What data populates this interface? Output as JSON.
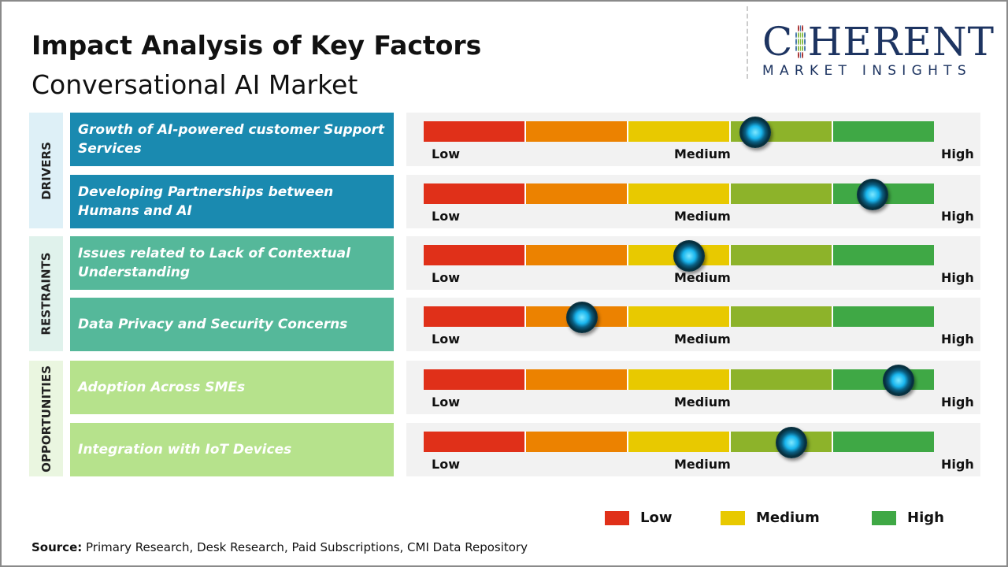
{
  "title": "Impact Analysis of Key Factors",
  "subtitle": "Conversational AI Market",
  "logo": {
    "main": "COHERENT",
    "tagline": "MARKET INSIGHTS"
  },
  "scale_labels": {
    "low": "Low",
    "medium": "Medium",
    "high": "High"
  },
  "scale_colors": [
    "#e03019",
    "#ec8200",
    "#e8c900",
    "#8db32a",
    "#3fa845"
  ],
  "categories": [
    {
      "name": "DRIVERS",
      "color": "#1a8ab0",
      "bg": "#def0f7",
      "factors": [
        {
          "label": "Growth of AI-powered customer Support Services",
          "impact_level": 0.65
        },
        {
          "label": "Developing Partnerships between Humans and AI",
          "impact_level": 0.88
        }
      ]
    },
    {
      "name": "RESTRAINTS",
      "color": "#55b89a",
      "bg": "#e0f2ec",
      "factors": [
        {
          "label": "Issues related to Lack of Contextual Understanding",
          "impact_level": 0.52
        },
        {
          "label": "Data Privacy and Security Concerns",
          "impact_level": 0.31
        }
      ]
    },
    {
      "name": "OPPORTUNITIES",
      "color": "#b6e28c",
      "bg": "#eaf6e0",
      "factors": [
        {
          "label": "Adoption Across SMEs",
          "impact_level": 0.93
        },
        {
          "label": "Integration with IoT Devices",
          "impact_level": 0.72
        }
      ]
    }
  ],
  "legend": [
    {
      "label": "Low",
      "color": "#e03019"
    },
    {
      "label": "Medium",
      "color": "#e8c900"
    },
    {
      "label": "High",
      "color": "#3fa845"
    }
  ],
  "source": {
    "prefix": "Source:",
    "text": " Primary Research, Desk Research, Paid Subscriptions, CMI Data Repository"
  }
}
